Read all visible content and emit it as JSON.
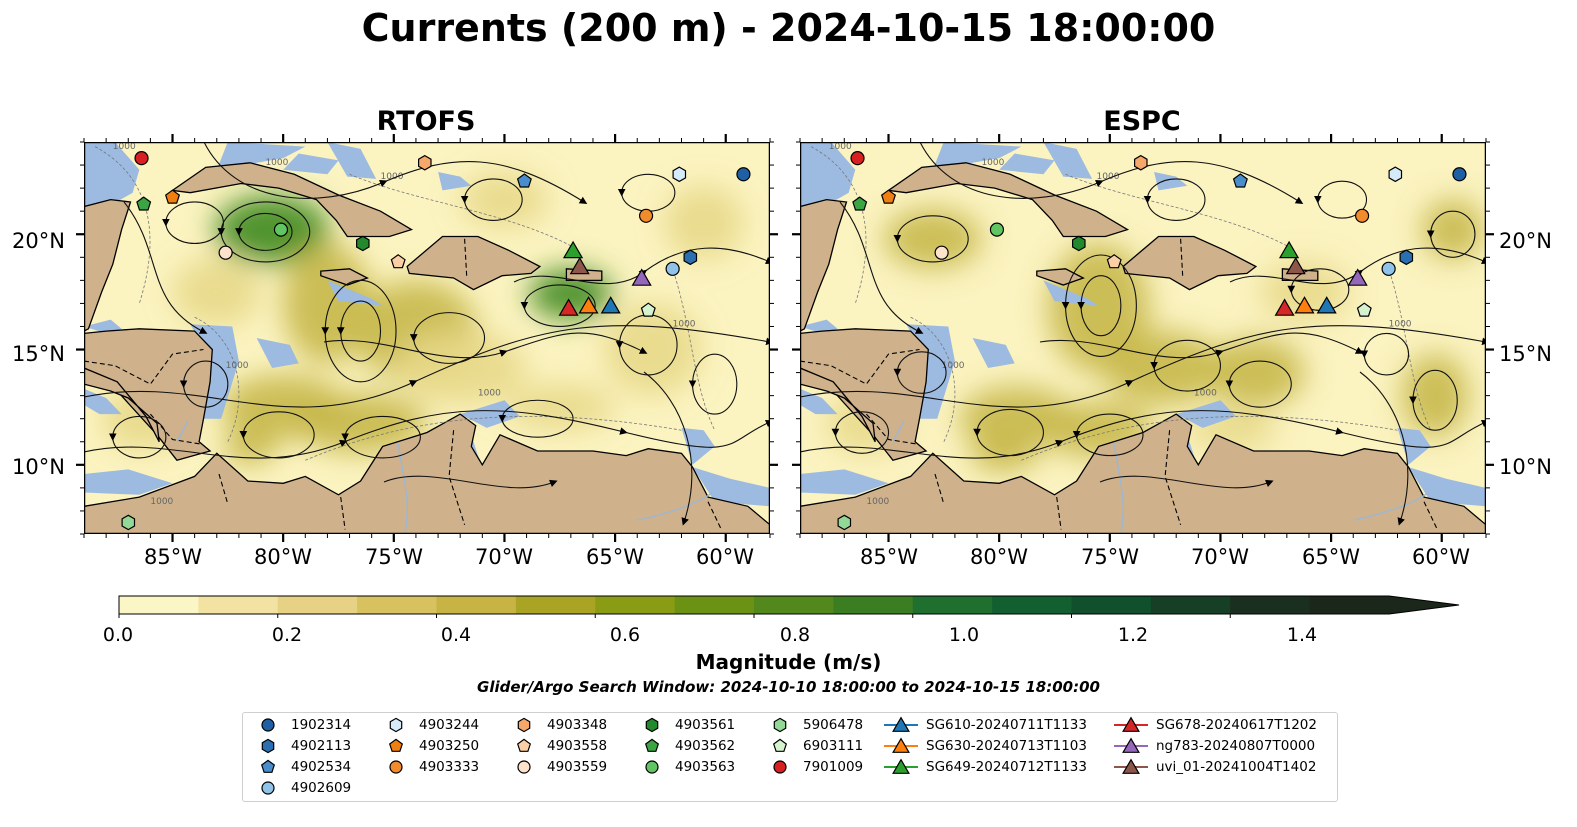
{
  "title": "Currents (200 m) - 2024-10-15 18:00:00",
  "panels": [
    {
      "title": "RTOFS"
    },
    {
      "title": "ESPC"
    }
  ],
  "map": {
    "lon_range": [
      -89,
      -58
    ],
    "lat_range": [
      7,
      24
    ],
    "lat_ticks": [
      "20°N",
      "15°N",
      "10°N"
    ],
    "lon_ticks": [
      "85°W",
      "80°W",
      "75°W",
      "70°W",
      "65°W",
      "60°W"
    ],
    "contour_label": "1000",
    "colors": {
      "land": "#cfb28c",
      "shallow": "#9dbae0",
      "ocean_low": "#fbf3c0",
      "ocean_mid": "#c6b84a",
      "ocean_high": "#3f8a1e"
    }
  },
  "colorbar": {
    "label": "Magnitude (m/s)",
    "ticks": [
      "0.0",
      "0.2",
      "0.4",
      "0.6",
      "0.8",
      "1.0",
      "1.2",
      "1.4"
    ],
    "range": [
      0,
      1.6
    ],
    "colors": [
      "#fbf6c6",
      "#f2e3a2",
      "#e6d184",
      "#d8c15f",
      "#c8b445",
      "#a9a424",
      "#8a9b14",
      "#6c9214",
      "#52881c",
      "#3b7e22",
      "#1f6f2e",
      "#126030",
      "#11502c",
      "#173f26",
      "#1a2f1f",
      "#1c271b"
    ]
  },
  "search_window": "Glider/Argo Search Window: 2024-10-10 18:00:00 to 2024-10-15 18:00:00",
  "legend": {
    "items": [
      {
        "label": "1902314",
        "marker": "circle",
        "color": "#1f5fa3"
      },
      {
        "label": "4902113",
        "marker": "hexagon",
        "color": "#2b6fb0"
      },
      {
        "label": "4902534",
        "marker": "pentagon",
        "color": "#4a8dcc"
      },
      {
        "label": "4902609",
        "marker": "circle",
        "color": "#8fc3ea"
      },
      {
        "label": "4903244",
        "marker": "hexagon",
        "color": "#d6ebf9"
      },
      {
        "label": "4903250",
        "marker": "pentagon",
        "color": "#f07f12"
      },
      {
        "label": "4903333",
        "marker": "circle",
        "color": "#f28b2c"
      },
      {
        "label": "4903348",
        "marker": "hexagon",
        "color": "#f5a86a"
      },
      {
        "label": "4903558",
        "marker": "pentagon",
        "color": "#fbcfa6"
      },
      {
        "label": "4903559",
        "marker": "circle",
        "color": "#fde3cb"
      },
      {
        "label": "4903561",
        "marker": "hexagon",
        "color": "#22892c"
      },
      {
        "label": "4903562",
        "marker": "pentagon",
        "color": "#3ba443"
      },
      {
        "label": "4903563",
        "marker": "circle",
        "color": "#62c564"
      },
      {
        "label": "5906478",
        "marker": "hexagon",
        "color": "#93d896"
      },
      {
        "label": "6903111",
        "marker": "pentagon",
        "color": "#d5f3cf"
      },
      {
        "label": "7901009",
        "marker": "circle",
        "color": "#d62022"
      },
      {
        "label": "SG610-20240711T1133",
        "marker": "triangle",
        "color": "#1f77b4"
      },
      {
        "label": "SG630-20240713T1103",
        "marker": "triangle",
        "color": "#ff7f0e"
      },
      {
        "label": "SG649-20240712T1133",
        "marker": "triangle",
        "color": "#2ca02c"
      },
      {
        "label": "SG678-20240617T1202",
        "marker": "triangle",
        "color": "#d62728"
      },
      {
        "label": "ng783-20240807T0000",
        "marker": "triangle",
        "color": "#9467bd"
      },
      {
        "label": "uvi_01-20241004T1402",
        "marker": "triangle",
        "color": "#8c564b"
      }
    ]
  },
  "observations": [
    {
      "id": "1902314",
      "lon": -59.2,
      "lat": 22.6
    },
    {
      "id": "4902113",
      "lon": -61.6,
      "lat": 19.0
    },
    {
      "id": "4902534",
      "lon": -69.1,
      "lat": 22.3
    },
    {
      "id": "4902609",
      "lon": -62.4,
      "lat": 18.5
    },
    {
      "id": "4903244",
      "lon": -62.1,
      "lat": 22.6
    },
    {
      "id": "4903250",
      "lon": -85.0,
      "lat": 21.6
    },
    {
      "id": "4903333",
      "lon": -63.6,
      "lat": 20.8
    },
    {
      "id": "4903348",
      "lon": -73.6,
      "lat": 23.1
    },
    {
      "id": "4903558",
      "lon": -74.8,
      "lat": 18.8
    },
    {
      "id": "4903559",
      "lon": -82.6,
      "lat": 19.2
    },
    {
      "id": "4903561",
      "lon": -76.4,
      "lat": 19.6
    },
    {
      "id": "4903562",
      "lon": -86.3,
      "lat": 21.3
    },
    {
      "id": "4903563",
      "lon": -80.1,
      "lat": 20.2
    },
    {
      "id": "5906478",
      "lon": -87.0,
      "lat": 7.5
    },
    {
      "id": "6903111",
      "lon": -63.5,
      "lat": 16.7
    },
    {
      "id": "7901009",
      "lon": -86.4,
      "lat": 23.3
    },
    {
      "id": "SG610-20240711T1133",
      "lon": -65.2,
      "lat": 16.9
    },
    {
      "id": "SG630-20240713T1103",
      "lon": -66.2,
      "lat": 16.9
    },
    {
      "id": "SG649-20240712T1133",
      "lon": -66.9,
      "lat": 19.3
    },
    {
      "id": "SG678-20240617T1202",
      "lon": -67.1,
      "lat": 16.8
    },
    {
      "id": "ng783-20240807T0000",
      "lon": -63.8,
      "lat": 18.1
    },
    {
      "id": "uvi_01-20241004T1402",
      "lon": -66.6,
      "lat": 18.6
    }
  ]
}
